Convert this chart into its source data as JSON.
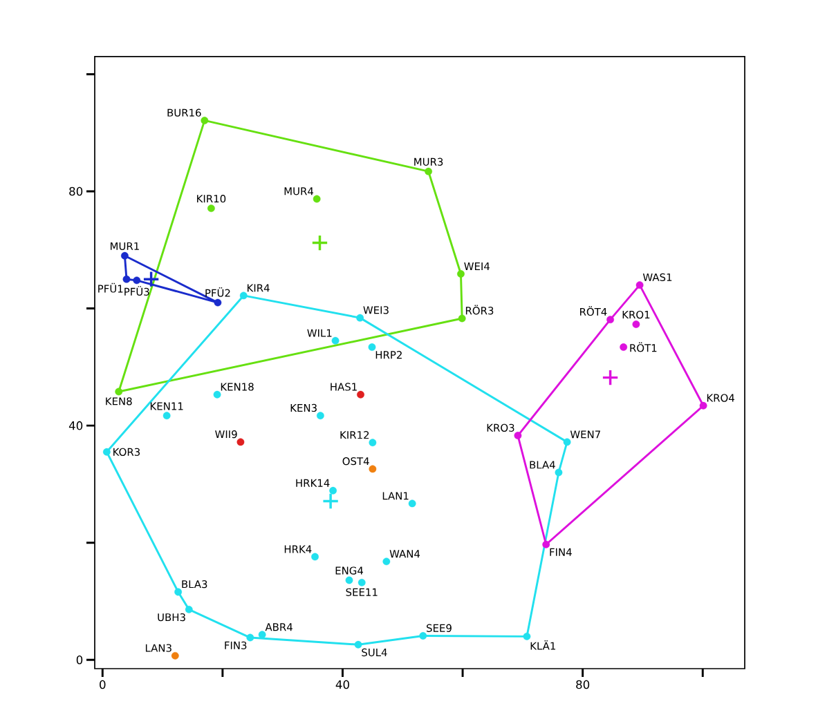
{
  "chart_data": {
    "type": "scatter",
    "xlim": [
      -1.3,
      107
    ],
    "ylim": [
      -1.5,
      103
    ],
    "xticks": [
      0,
      {
        "value": 20,
        "label": null
      },
      40,
      {
        "value": 60,
        "label": null
      },
      80,
      {
        "value": 100,
        "label": null
      }
    ],
    "yticks": [
      0,
      {
        "value": 20,
        "label": null
      },
      40,
      {
        "value": 60,
        "label": null
      },
      80,
      {
        "value": 100,
        "label": null
      }
    ],
    "series": [
      {
        "type": "line",
        "color": "#66e011",
        "marker": "none",
        "x": [
          17.0,
          54.3,
          59.7,
          59.9
        ],
        "values": [
          92.1,
          83.4,
          65.9,
          58.3
        ]
      },
      {
        "type": "line",
        "color": "#66e011",
        "marker": "none",
        "x": [
          59.9,
          2.7,
          17.0
        ],
        "values": [
          58.3,
          45.8,
          92.1
        ]
      },
      {
        "type": "line",
        "color": "#1a2ccc",
        "marker": "none",
        "x": [
          3.7,
          19.2,
          5.7
        ],
        "values": [
          69.0,
          61.0,
          64.8
        ]
      },
      {
        "type": "line",
        "color": "#1a2ccc",
        "marker": "none",
        "x": [
          5.7,
          4.0,
          3.7
        ],
        "values": [
          64.8,
          65.0,
          69.0
        ]
      },
      {
        "type": "line",
        "color": "#22e0ee",
        "marker": "none",
        "x": [
          23.5,
          42.9,
          77.4,
          76.0,
          70.7,
          53.4
        ],
        "values": [
          62.2,
          58.4,
          37.2,
          32.0,
          4.0,
          4.1
        ]
      },
      {
        "type": "line",
        "color": "#22e0ee",
        "marker": "none",
        "x": [
          53.4,
          42.6,
          24.6,
          14.4,
          12.6,
          0.7,
          23.5
        ],
        "values": [
          4.1,
          2.6,
          3.8,
          8.6,
          11.6,
          35.5,
          62.2
        ]
      },
      {
        "type": "line",
        "color": "#dd11dd",
        "marker": "none",
        "x": [
          89.5,
          100.1,
          73.9
        ],
        "values": [
          64.0,
          43.4,
          19.7
        ]
      },
      {
        "type": "line",
        "color": "#dd11dd",
        "marker": "none",
        "x": [
          73.9,
          69.2,
          84.6,
          89.5
        ],
        "values": [
          19.7,
          38.3,
          58.1,
          64.0
        ]
      },
      {
        "type": "scatter",
        "color": "#66e011",
        "marker": "circle",
        "x": [
          17.0,
          54.3,
          59.7,
          59.9,
          2.7,
          18.1,
          35.7
        ],
        "values": [
          92.1,
          83.4,
          65.9,
          58.3,
          45.8,
          77.1,
          78.7
        ]
      },
      {
        "type": "scatter",
        "color": "#1a2ccc",
        "marker": "circle",
        "x": [
          3.7,
          4.0,
          5.7,
          19.2
        ],
        "values": [
          69.0,
          65.0,
          64.8,
          61.0
        ]
      },
      {
        "type": "scatter",
        "color": "#22e0ee",
        "marker": "circle",
        "x": [
          23.5,
          42.9,
          38.8,
          44.9,
          19.1,
          10.7,
          36.3,
          45.0,
          38.4,
          51.6,
          35.4,
          47.3,
          41.1,
          43.2,
          12.6,
          14.4,
          26.6,
          24.6,
          42.6,
          53.4,
          70.7,
          76.0,
          77.4,
          0.7
        ],
        "values": [
          62.2,
          58.4,
          54.5,
          53.4,
          45.3,
          41.7,
          41.7,
          37.1,
          28.9,
          26.7,
          17.6,
          16.8,
          13.6,
          13.2,
          11.6,
          8.6,
          4.3,
          3.8,
          2.6,
          4.1,
          4.0,
          32.0,
          37.2,
          35.5
        ]
      },
      {
        "type": "scatter",
        "color": "#e02020",
        "marker": "circle",
        "x": [
          43.0,
          23.0
        ],
        "values": [
          45.3,
          37.2
        ]
      },
      {
        "type": "scatter",
        "color": "#f08010",
        "marker": "circle",
        "x": [
          45.0,
          12.1
        ],
        "values": [
          32.6,
          0.7
        ]
      },
      {
        "type": "scatter",
        "color": "#dd11dd",
        "marker": "circle",
        "x": [
          89.5,
          84.6,
          88.9,
          86.8,
          100.1,
          69.2,
          73.9
        ],
        "values": [
          64.0,
          58.1,
          57.3,
          53.4,
          43.4,
          38.3,
          19.7
        ]
      },
      {
        "type": "scatter",
        "color": "#66e011",
        "marker": "cross",
        "x": [
          36.2
        ],
        "values": [
          71.2
        ]
      },
      {
        "type": "scatter",
        "color": "#1a2ccc",
        "marker": "cross",
        "x": [
          8.1
        ],
        "values": [
          65.0
        ]
      },
      {
        "type": "scatter",
        "color": "#22e0ee",
        "marker": "cross",
        "x": [
          38.0
        ],
        "values": [
          27.1
        ]
      },
      {
        "type": "scatter",
        "color": "#dd11dd",
        "marker": "cross",
        "x": [
          84.6
        ],
        "values": [
          48.2
        ]
      }
    ],
    "annotations": [
      {
        "text": "BUR16",
        "x": 17.0,
        "y": 92.1
      },
      {
        "text": "MUR3",
        "x": 54.3,
        "y": 83.4
      },
      {
        "text": "WEI4",
        "x": 59.7,
        "y": 65.9
      },
      {
        "text": "RÖR3",
        "x": 59.9,
        "y": 58.3
      },
      {
        "text": "KEN8",
        "x": 2.7,
        "y": 45.8
      },
      {
        "text": "KIR10",
        "x": 18.1,
        "y": 77.1
      },
      {
        "text": "MUR4",
        "x": 35.7,
        "y": 78.7
      },
      {
        "text": "MUR1",
        "x": 3.7,
        "y": 69.0
      },
      {
        "text": "PFÜ1",
        "x": 4.0,
        "y": 65.0
      },
      {
        "text": "PFÜ3",
        "x": 5.7,
        "y": 64.8
      },
      {
        "text": "PFÜ2",
        "x": 19.2,
        "y": 61.0
      },
      {
        "text": "KIR4",
        "x": 23.5,
        "y": 62.2
      },
      {
        "text": "WEI3",
        "x": 42.9,
        "y": 58.4
      },
      {
        "text": "WIL1",
        "x": 38.8,
        "y": 54.5
      },
      {
        "text": "HRP2",
        "x": 44.9,
        "y": 53.4
      },
      {
        "text": "KEN18",
        "x": 19.1,
        "y": 45.3
      },
      {
        "text": "KEN11",
        "x": 10.7,
        "y": 41.7
      },
      {
        "text": "KEN3",
        "x": 36.3,
        "y": 41.7
      },
      {
        "text": "KIR12",
        "x": 45.0,
        "y": 37.1
      },
      {
        "text": "HRK14",
        "x": 38.4,
        "y": 28.9
      },
      {
        "text": "LAN1",
        "x": 51.6,
        "y": 26.7
      },
      {
        "text": "HRK4",
        "x": 35.4,
        "y": 17.6
      },
      {
        "text": "WAN4",
        "x": 47.3,
        "y": 16.8
      },
      {
        "text": "ENG4",
        "x": 41.1,
        "y": 13.6
      },
      {
        "text": "SEE11",
        "x": 43.2,
        "y": 13.2
      },
      {
        "text": "BLA3",
        "x": 12.6,
        "y": 11.6
      },
      {
        "text": "UBH3",
        "x": 14.4,
        "y": 8.6
      },
      {
        "text": "ABR4",
        "x": 26.6,
        "y": 4.3
      },
      {
        "text": "FIN3",
        "x": 24.6,
        "y": 3.8
      },
      {
        "text": "SUL4",
        "x": 42.6,
        "y": 2.6
      },
      {
        "text": "SEE9",
        "x": 53.4,
        "y": 4.1
      },
      {
        "text": "KLÄ1",
        "x": 70.7,
        "y": 4.0
      },
      {
        "text": "BLA4",
        "x": 76.0,
        "y": 32.0
      },
      {
        "text": "WEN7",
        "x": 77.4,
        "y": 37.2
      },
      {
        "text": "KOR3",
        "x": 0.7,
        "y": 35.5
      },
      {
        "text": "HAS1",
        "x": 43.0,
        "y": 45.3
      },
      {
        "text": "WII9",
        "x": 23.0,
        "y": 37.2
      },
      {
        "text": "OST4",
        "x": 45.0,
        "y": 32.6
      },
      {
        "text": "LAN3",
        "x": 12.1,
        "y": 0.7
      },
      {
        "text": "WAS1",
        "x": 89.5,
        "y": 64.0
      },
      {
        "text": "RÖT4",
        "x": 84.6,
        "y": 58.1
      },
      {
        "text": "KRO1",
        "x": 88.9,
        "y": 57.3
      },
      {
        "text": "RÖT1",
        "x": 86.8,
        "y": 53.4
      },
      {
        "text": "KRO4",
        "x": 100.1,
        "y": 43.4
      },
      {
        "text": "KRO3",
        "x": 69.2,
        "y": 38.3
      },
      {
        "text": "FIN4",
        "x": 73.9,
        "y": 19.7
      }
    ]
  }
}
